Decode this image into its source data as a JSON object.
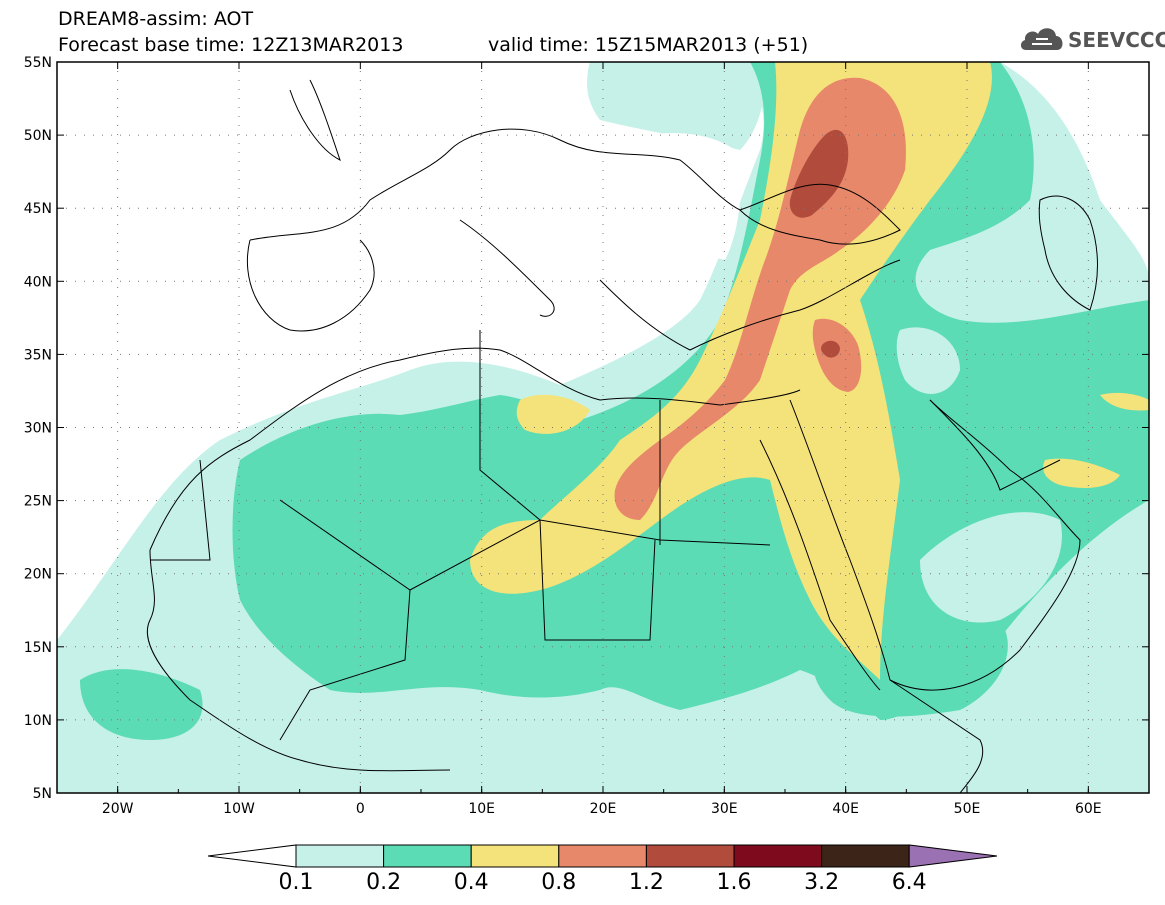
{
  "header": {
    "line1": "DREAM8-assim: AOT",
    "line2": "Forecast base time: 12Z13MAR2013",
    "line3": "valid time: 15Z15MAR2013 (+51)",
    "logo": "SEEVCCC"
  },
  "map": {
    "lat_range": [
      5,
      55
    ],
    "lon_range": [
      -25,
      65
    ],
    "lat_labels": [
      "55N",
      "50N",
      "45N",
      "40N",
      "35N",
      "30N",
      "25N",
      "20N",
      "15N",
      "10N",
      "5N"
    ],
    "lon_labels": [
      "20W",
      "10W",
      "0",
      "10E",
      "20E",
      "30E",
      "40E",
      "50E",
      "60E"
    ],
    "colors": {
      "none": "#ffffff",
      "c1": "#c6f1e8",
      "c2": "#5cdcb4",
      "c3": "#f4e27a",
      "c4": "#e7886a",
      "c5": "#b14b3c",
      "c6": "#7e0a1e",
      "c7": "#3c2418",
      "c8": "#9a72b4"
    }
  },
  "colorbar": {
    "labels": [
      "0.1",
      "0.2",
      "0.4",
      "0.8",
      "1.2",
      "1.6",
      "3.2",
      "6.4"
    ]
  }
}
